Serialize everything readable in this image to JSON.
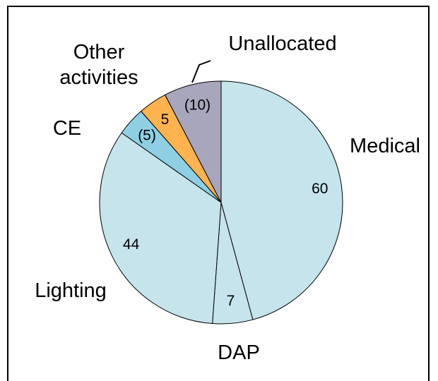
{
  "chart_data": {
    "type": "pie",
    "categories": [
      "Medical",
      "DAP",
      "Lighting",
      "CE",
      "Other activities",
      "Unallocated"
    ],
    "values": [
      60,
      7,
      44,
      5,
      5,
      10
    ],
    "value_labels": [
      "60",
      "7",
      "44",
      "(5)",
      "5",
      "(10)"
    ],
    "colors": [
      "#c5e4ec",
      "#c5e4ec",
      "#c5e4ec",
      "#8fcfe3",
      "#ffb34f",
      "#a7a6bd"
    ]
  }
}
